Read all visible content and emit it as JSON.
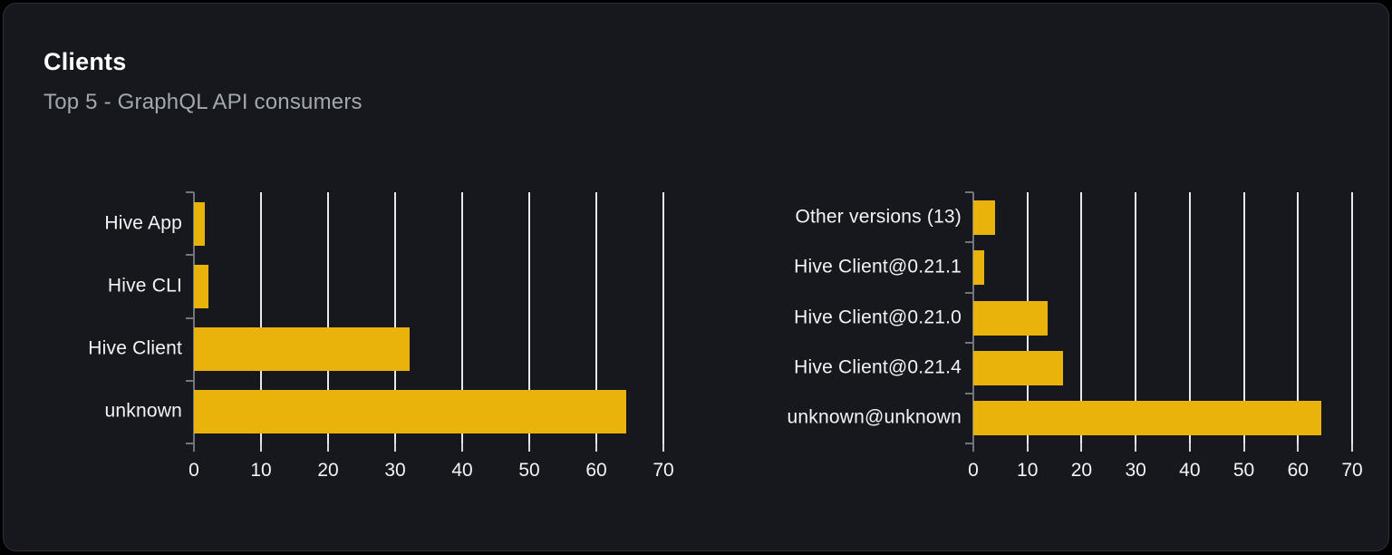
{
  "card": {
    "title": "Clients",
    "subtitle": "Top 5 - GraphQL API consumers"
  },
  "colors": {
    "bar": "#e9b30c",
    "card_bg": "#16181d",
    "card_border": "#2c313a",
    "page_bg": "#000000",
    "gridline": "#e7e9ee",
    "axis": "#71767e",
    "title_text": "#ffffff",
    "subtitle_text": "#a2a8b0",
    "label_text": "#f3f4f6"
  },
  "chart_data": [
    {
      "type": "bar",
      "orientation": "horizontal",
      "title": "",
      "categories": [
        "Hive App",
        "Hive CLI",
        "Hive Client",
        "unknown"
      ],
      "values": [
        1.6,
        2.2,
        32.2,
        64.5
      ],
      "xlabel": "",
      "ylabel": "",
      "xlim": [
        0,
        70
      ],
      "xticks": [
        0,
        10,
        20,
        30,
        40,
        50,
        60,
        70
      ],
      "grid": true,
      "legend": false
    },
    {
      "type": "bar",
      "orientation": "horizontal",
      "title": "",
      "categories": [
        "Other versions (13)",
        "Hive Client@0.21.1",
        "Hive Client@0.21.0",
        "Hive Client@0.21.4",
        "unknown@unknown"
      ],
      "values": [
        4.0,
        2.0,
        13.8,
        16.5,
        64.3
      ],
      "xlabel": "",
      "ylabel": "",
      "xlim": [
        0,
        70
      ],
      "xticks": [
        0,
        10,
        20,
        30,
        40,
        50,
        60,
        70
      ],
      "grid": true,
      "legend": false
    }
  ]
}
